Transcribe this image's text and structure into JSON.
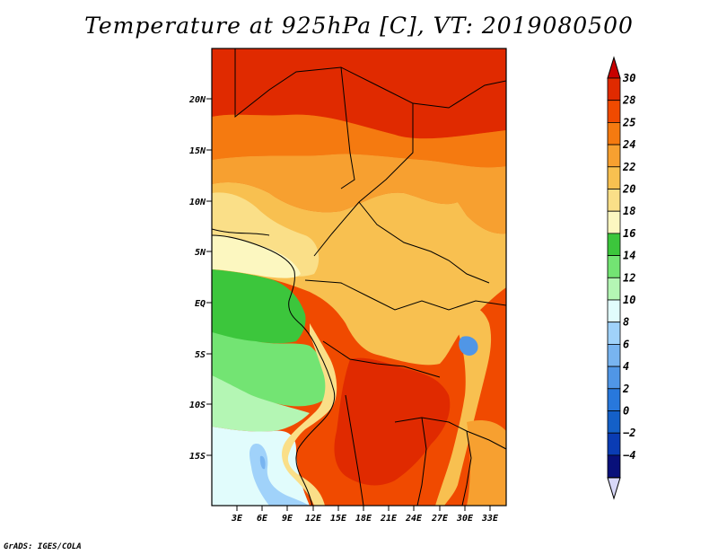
{
  "title": "Temperature at 925hPa [C], VT: 2019080500",
  "credit": "GrADS: IGES/COLA",
  "latitude_labels": [
    "20N",
    "15N",
    "10N",
    "5N",
    "EQ",
    "5S",
    "10S",
    "15S"
  ],
  "longitude_labels": [
    "3E",
    "6E",
    "9E",
    "12E",
    "15E",
    "18E",
    "21E",
    "24E",
    "27E",
    "30E",
    "33E"
  ],
  "colorbar": {
    "labels": [
      "30",
      "28",
      "25",
      "24",
      "22",
      "20",
      "18",
      "16",
      "14",
      "12",
      "10",
      "8",
      "6",
      "4",
      "2",
      "0",
      "−2",
      "−4"
    ],
    "colors": [
      "#e02a00",
      "#f04a00",
      "#f57a10",
      "#f7a030",
      "#f8c050",
      "#fadf88",
      "#fcf7c0",
      "#3cc63c",
      "#73e473",
      "#b4f6b4",
      "#e1fcfc",
      "#a0d2fa",
      "#78b4f0",
      "#5096e6",
      "#2878dc",
      "#1460c8",
      "#0a3cb4",
      "#08107a"
    ],
    "top_arrow_color": "#c80000",
    "bottom_arrow_color": "#d8d8f8"
  }
}
